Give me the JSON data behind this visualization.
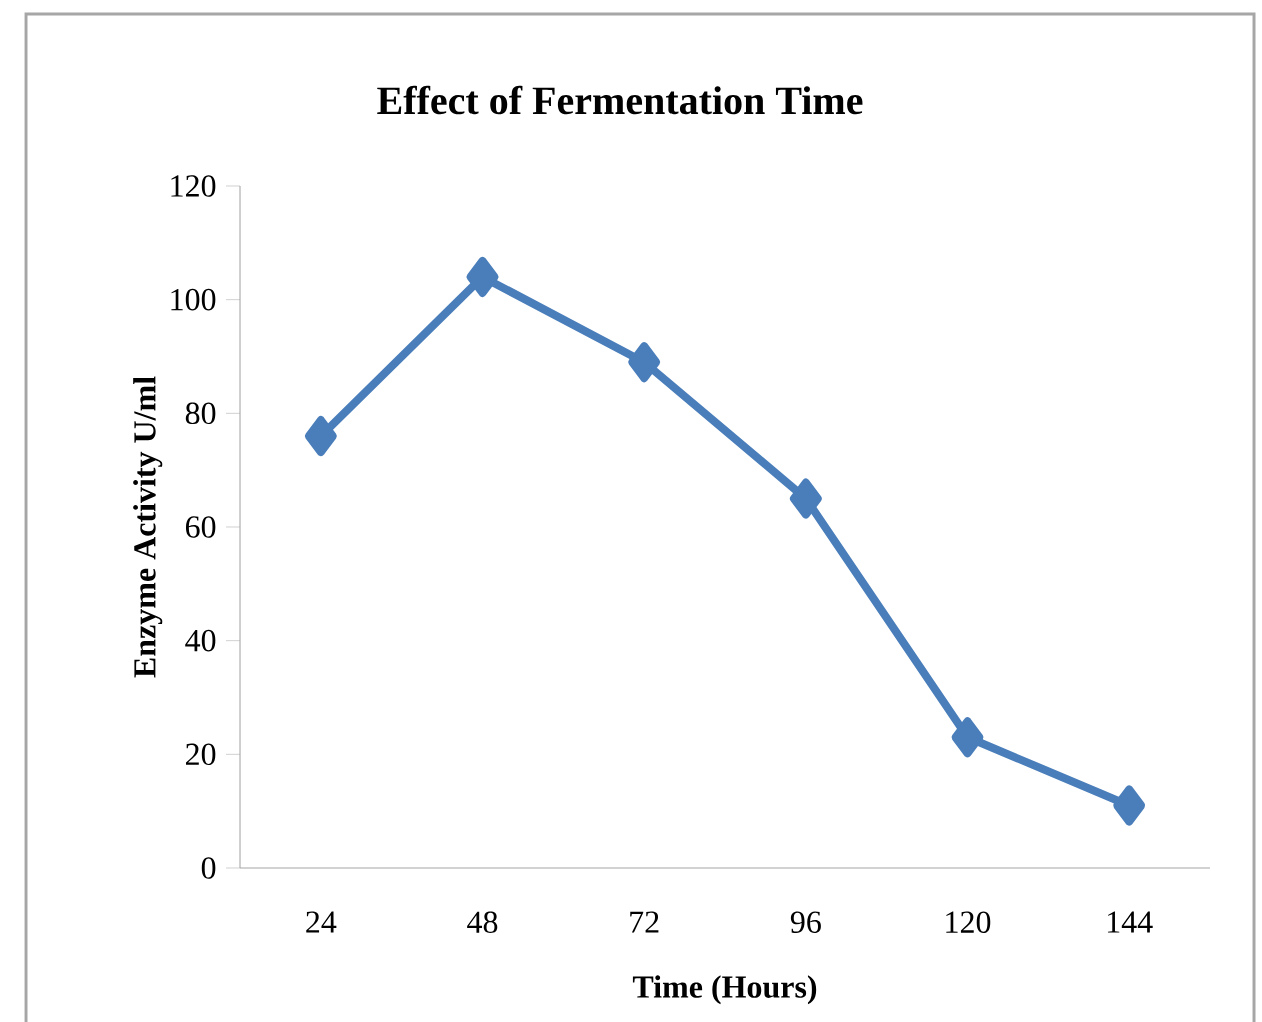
{
  "chart_data": {
    "type": "line",
    "title": "Effect of Fermentation  Time",
    "xlabel": "Time (Hours)",
    "ylabel": "Enzyme Activity U/ml",
    "categories": [
      "24",
      "48",
      "72",
      "96",
      "120",
      "144"
    ],
    "series": [
      {
        "color": "#4a7ebb",
        "values": [
          76,
          104,
          89,
          65,
          23,
          11
        ]
      }
    ],
    "ylim": [
      0,
      120
    ],
    "yticks": [
      0,
      20,
      40,
      60,
      80,
      100,
      120
    ],
    "marker": "diamond",
    "line_style": "solid"
  }
}
